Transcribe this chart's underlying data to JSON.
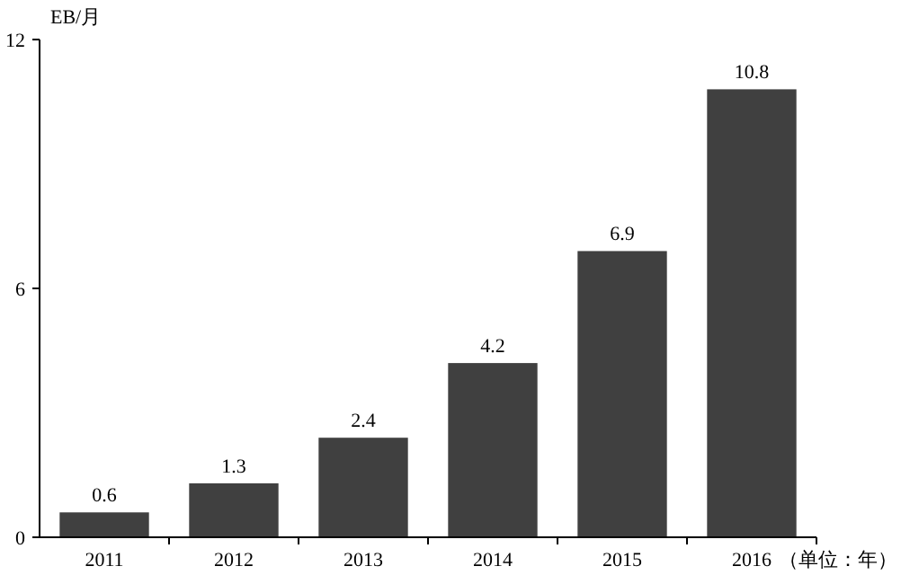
{
  "chart_data": {
    "type": "bar",
    "ylabel": "EB/月",
    "xlabel": "（单位：年）",
    "categories": [
      "2011",
      "2012",
      "2013",
      "2014",
      "2015",
      "2016"
    ],
    "values": [
      0.6,
      1.3,
      2.4,
      4.2,
      6.9,
      10.8
    ],
    "color": "#404040",
    "ylim": [
      0,
      12
    ],
    "yticks": [
      0,
      6,
      12
    ],
    "data_labels": true
  }
}
